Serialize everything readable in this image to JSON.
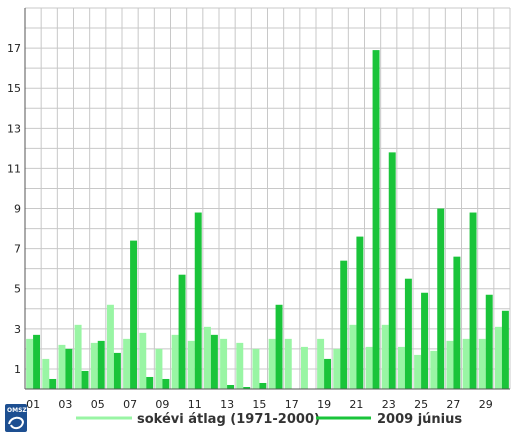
{
  "chart_data": {
    "type": "bar",
    "title": "",
    "xlabel": "",
    "ylabel": "",
    "ylim": [
      0,
      19
    ],
    "grid": true,
    "legend_position": "bottom",
    "y_ticks": [
      1,
      3,
      5,
      7,
      9,
      11,
      13,
      15,
      17
    ],
    "categories": [
      "01",
      "02",
      "03",
      "04",
      "05",
      "06",
      "07",
      "08",
      "09",
      "10",
      "11",
      "12",
      "13",
      "14",
      "15",
      "16",
      "17",
      "18",
      "19",
      "20",
      "21",
      "22",
      "23",
      "24",
      "25",
      "26",
      "27",
      "28",
      "29",
      "30"
    ],
    "x_tick_labels": [
      "01",
      "03",
      "05",
      "07",
      "09",
      "11",
      "13",
      "15",
      "17",
      "19",
      "21",
      "23",
      "25",
      "27",
      "29"
    ],
    "series": [
      {
        "name": "sokévi átlag (1971-2000)",
        "color": "#99f5a4",
        "values": [
          2.5,
          1.5,
          2.2,
          3.2,
          2.3,
          4.2,
          2.5,
          2.8,
          2.0,
          2.7,
          2.4,
          3.1,
          2.5,
          2.3,
          2.0,
          2.5,
          2.5,
          2.1,
          2.5,
          2.0,
          3.2,
          2.1,
          3.2,
          2.1,
          1.7,
          1.9,
          2.4,
          2.5,
          2.5,
          3.1
        ]
      },
      {
        "name": "2009 június",
        "color": "#1ac43a",
        "values": [
          2.7,
          0.5,
          2.0,
          0.9,
          2.4,
          1.8,
          7.4,
          0.6,
          0.5,
          5.7,
          8.8,
          2.7,
          0.2,
          0.1,
          0.3,
          4.2,
          0.0,
          0.0,
          1.5,
          6.4,
          7.6,
          16.9,
          11.8,
          5.5,
          4.8,
          9.0,
          6.6,
          8.8,
          4.7,
          3.9
        ]
      }
    ]
  },
  "logo": {
    "text": "OMSZ"
  }
}
